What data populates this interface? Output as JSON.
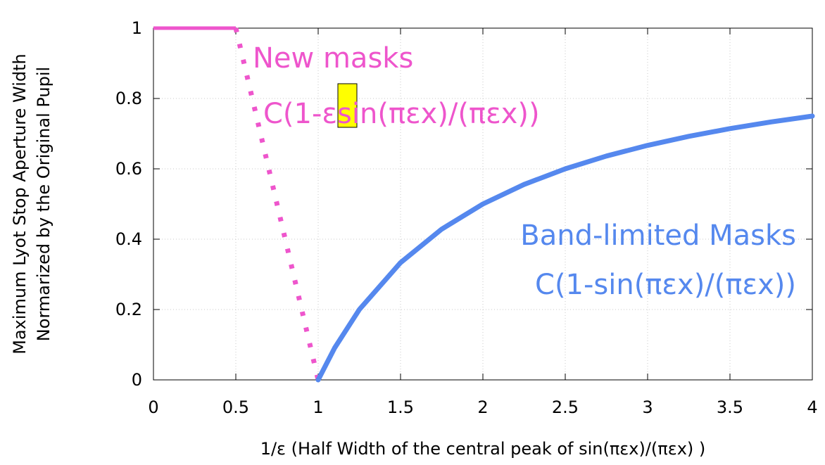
{
  "chart_data": {
    "type": "line",
    "xlabel": "1/ε (Half Width of the central peak of sin(πεx)/(πεx) )",
    "ylabel_lines": [
      "Maximum Lyot Stop Aperture Width",
      "Normarized by the Original Pupil"
    ],
    "xlim": [
      0,
      4
    ],
    "ylim": [
      0,
      1
    ],
    "x_ticks": [
      "0",
      "0.5",
      "1",
      "1.5",
      "2",
      "2.5",
      "3",
      "3.5",
      "4"
    ],
    "y_ticks": [
      "0",
      "0.2",
      "0.4",
      "0.6",
      "0.8",
      "1"
    ],
    "grid": true,
    "series": [
      {
        "color": "#ee55cc",
        "points": [
          [
            0,
            1
          ],
          [
            0.5,
            1
          ],
          [
            0.55,
            0.9
          ],
          [
            0.6,
            0.8
          ],
          [
            0.65,
            0.7
          ],
          [
            0.7,
            0.6
          ],
          [
            0.75,
            0.5
          ],
          [
            0.8,
            0.4
          ],
          [
            0.85,
            0.3
          ],
          [
            0.9,
            0.2
          ],
          [
            0.95,
            0.1
          ],
          [
            1.0,
            0.0
          ]
        ]
      },
      {
        "color": "#5588ee",
        "points": [
          [
            1.0,
            0.0
          ],
          [
            1.1,
            0.0909
          ],
          [
            1.25,
            0.2
          ],
          [
            1.5,
            0.3333
          ],
          [
            1.75,
            0.4286
          ],
          [
            2.0,
            0.5
          ],
          [
            2.25,
            0.5556
          ],
          [
            2.5,
            0.6
          ],
          [
            2.75,
            0.6364
          ],
          [
            3.0,
            0.6667
          ],
          [
            3.25,
            0.6923
          ],
          [
            3.5,
            0.7143
          ],
          [
            3.75,
            0.7333
          ],
          [
            4.0,
            0.75
          ]
        ]
      }
    ],
    "annotations": {
      "new_masks_title": "New masks",
      "new_masks_formula": "C(1-εsin(πεx)/(πεx))",
      "band_limited_title": "Band-limited Masks",
      "band_limited_formula": "C(1-sin(πεx)/(πεx))"
    },
    "colors": {
      "new_masks": "#ee55cc",
      "band_limited": "#5588ee",
      "highlight": "#ffff00"
    }
  }
}
